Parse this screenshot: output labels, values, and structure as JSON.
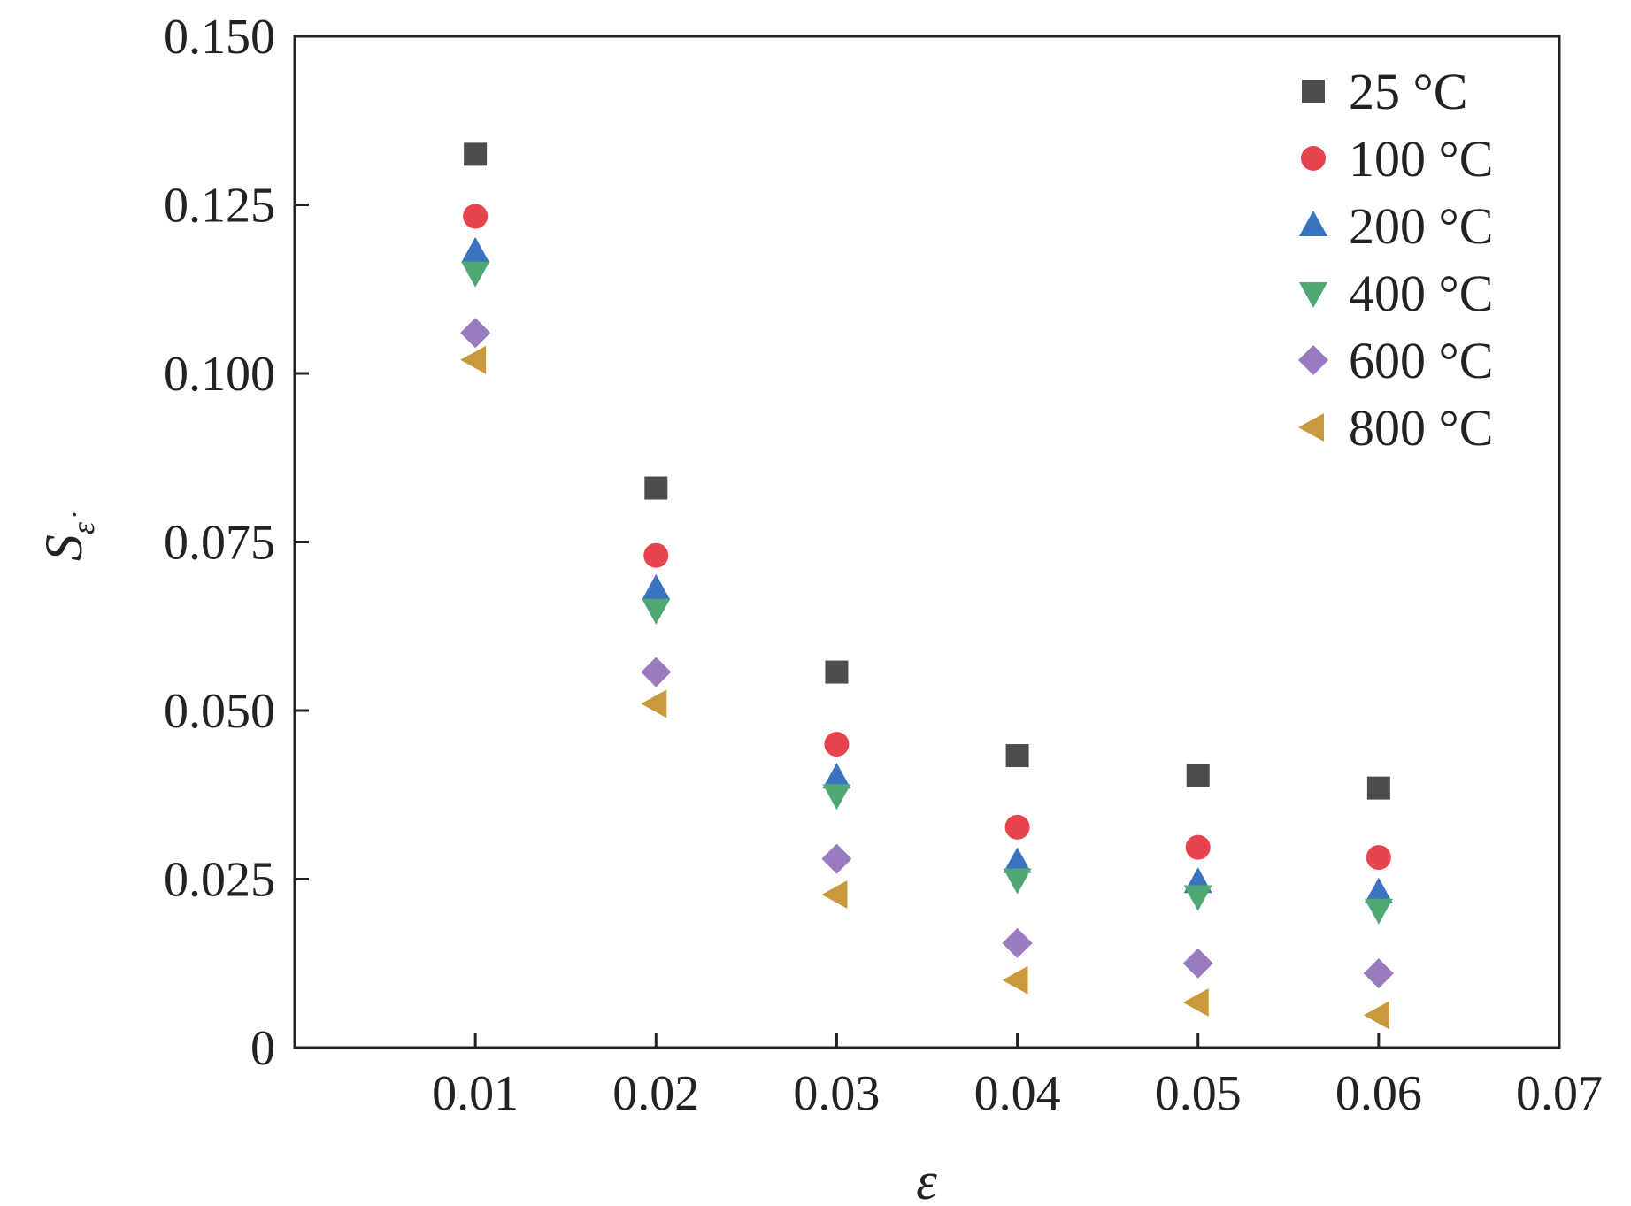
{
  "chart_data": {
    "type": "scatter",
    "title": "",
    "xlabel": "ε",
    "ylabel": "S",
    "ylabel_subscript": "ε̇",
    "xlim": [
      0,
      0.07
    ],
    "ylim": [
      0,
      0.15
    ],
    "x_ticks": [
      0.01,
      0.02,
      0.03,
      0.04,
      0.05,
      0.06,
      0.07
    ],
    "x_tick_labels": [
      "0.01",
      "0.02",
      "0.03",
      "0.04",
      "0.05",
      "0.06",
      "0.07"
    ],
    "y_ticks": [
      0,
      0.025,
      0.05,
      0.075,
      0.1,
      0.125,
      0.15
    ],
    "y_tick_labels": [
      "0",
      "0.025",
      "0.050",
      "0.075",
      "0.100",
      "0.125",
      "0.150"
    ],
    "grid": false,
    "legend_position": "top-right",
    "series": [
      {
        "name": "25 °C",
        "marker": "square",
        "color": "#4d4d4d",
        "x": [
          0.01,
          0.02,
          0.03,
          0.04,
          0.05,
          0.06
        ],
        "y": [
          0.1325,
          0.083,
          0.0557,
          0.0433,
          0.0403,
          0.0385
        ]
      },
      {
        "name": "100 °C",
        "marker": "circle",
        "color": "#e8444e",
        "x": [
          0.01,
          0.02,
          0.03,
          0.04,
          0.05,
          0.06
        ],
        "y": [
          0.1233,
          0.073,
          0.045,
          0.0327,
          0.0297,
          0.0282
        ]
      },
      {
        "name": "200 °C",
        "marker": "triangle-up",
        "color": "#3a73bf",
        "x": [
          0.01,
          0.02,
          0.03,
          0.04,
          0.05,
          0.06
        ],
        "y": [
          0.118,
          0.068,
          0.04,
          0.0275,
          0.0245,
          0.023
        ]
      },
      {
        "name": "400 °C",
        "marker": "triangle-down",
        "color": "#4fa873",
        "x": [
          0.01,
          0.02,
          0.03,
          0.04,
          0.05,
          0.06
        ],
        "y": [
          0.115,
          0.065,
          0.0375,
          0.025,
          0.0225,
          0.0205
        ]
      },
      {
        "name": "600 °C",
        "marker": "diamond",
        "color": "#9b7bbf",
        "x": [
          0.01,
          0.02,
          0.03,
          0.04,
          0.05,
          0.06
        ],
        "y": [
          0.106,
          0.0557,
          0.028,
          0.0155,
          0.0125,
          0.011
        ]
      },
      {
        "name": "800 °C",
        "marker": "triangle-left",
        "color": "#c99a3b",
        "x": [
          0.01,
          0.02,
          0.03,
          0.04,
          0.05,
          0.06
        ],
        "y": [
          0.102,
          0.051,
          0.0227,
          0.01,
          0.0067,
          0.0048
        ]
      }
    ]
  }
}
